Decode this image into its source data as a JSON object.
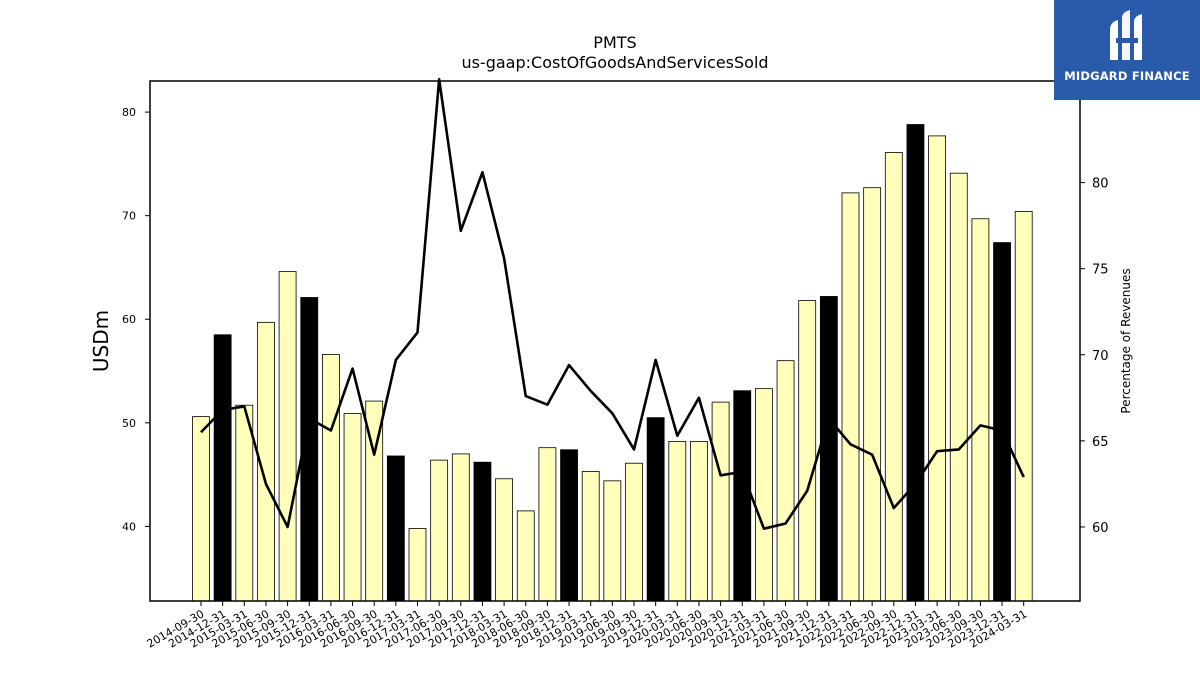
{
  "chart_data": {
    "type": "bar",
    "title": "PMTS",
    "subtitle": "us-gaap:CostOfGoodsAndServicesSold",
    "ylabel": "USDm",
    "ylabel_right": "Percentage of Revenues",
    "ylim": [
      32.8,
      83
    ],
    "ylim_right": [
      55.7,
      85.9
    ],
    "yticks": [
      40,
      50,
      60,
      70,
      80
    ],
    "yticks_right": [
      60,
      65,
      70,
      75,
      80
    ],
    "categories": [
      "2014-09-30",
      "2014-12-31",
      "2015-03-31",
      "2015-06-30",
      "2015-09-30",
      "2015-12-31",
      "2016-03-31",
      "2016-06-30",
      "2016-09-30",
      "2016-12-31",
      "2017-03-31",
      "2017-06-30",
      "2017-09-30",
      "2017-12-31",
      "2018-03-31",
      "2018-06-30",
      "2018-09-30",
      "2018-12-31",
      "2019-03-31",
      "2019-06-30",
      "2019-09-30",
      "2019-12-31",
      "2020-03-31",
      "2020-06-30",
      "2020-09-30",
      "2020-12-31",
      "2021-03-31",
      "2021-06-30",
      "2021-09-30",
      "2021-12-31",
      "2022-03-31",
      "2022-06-30",
      "2022-09-30",
      "2022-12-31",
      "2023-03-31",
      "2023-06-30",
      "2023-09-30",
      "2023-12-31",
      "2024-03-31"
    ],
    "series": [
      {
        "values": [
          50.6,
          58.5,
          51.7,
          59.7,
          64.6,
          62.1,
          56.6,
          50.9,
          52.1,
          46.8,
          39.8,
          46.4,
          47.0,
          46.2,
          44.6,
          41.5,
          47.6,
          47.4,
          45.3,
          44.4,
          46.1,
          50.5,
          48.2,
          48.2,
          52.0,
          53.1,
          53.3,
          56.0,
          61.8,
          62.2,
          72.2,
          72.7,
          76.1,
          78.8,
          77.7,
          74.1,
          69.7,
          67.4,
          70.4
        ],
        "highlight": [
          false,
          true,
          false,
          false,
          false,
          true,
          false,
          false,
          false,
          true,
          false,
          false,
          false,
          true,
          false,
          false,
          false,
          true,
          false,
          false,
          false,
          true,
          false,
          false,
          false,
          true,
          false,
          false,
          false,
          true,
          false,
          false,
          false,
          true,
          false,
          false,
          false,
          true,
          false
        ]
      },
      {
        "type": "line",
        "axis": "right",
        "values": [
          65.5,
          66.8,
          67.0,
          62.5,
          60.0,
          66.3,
          65.6,
          69.2,
          64.2,
          69.7,
          71.3,
          86.0,
          77.2,
          80.6,
          75.6,
          67.6,
          67.1,
          69.4,
          67.9,
          66.6,
          64.5,
          69.7,
          65.3,
          67.5,
          63.0,
          63.2,
          59.9,
          60.2,
          62.1,
          66.3,
          64.8,
          64.2,
          61.1,
          62.5,
          64.4,
          64.5,
          65.9,
          65.6,
          62.9
        ]
      }
    ],
    "colors": {
      "bar": "#ffffbb",
      "bar_highlight": "#000000",
      "bar_edge": "#000000",
      "line": "#000000"
    },
    "grid": false,
    "legend": "none"
  },
  "logo": {
    "text": "MIDGARD FINANCE",
    "color": "#2a5bab"
  }
}
